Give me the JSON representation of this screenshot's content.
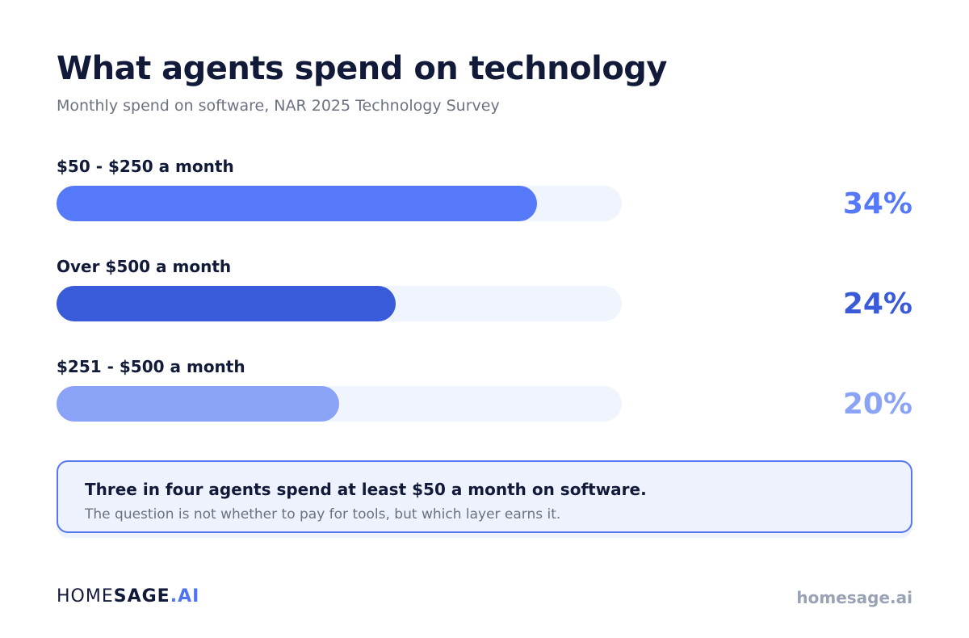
{
  "header": {
    "title": "What agents spend on technology",
    "subtitle": "Monthly spend on software, NAR 2025 Technology Survey"
  },
  "chart_data": {
    "type": "bar",
    "orientation": "horizontal",
    "categories": [
      "$50 - $250 a month",
      "Over $500 a month",
      "$251 - $500 a month"
    ],
    "values": [
      34,
      24,
      20
    ],
    "value_labels": [
      "34%",
      "24%",
      "20%"
    ],
    "xlim": [
      0,
      40
    ],
    "colors": [
      "#5579f8",
      "#3a5bd9",
      "#8aa3f7"
    ],
    "track_color": "#f0f4fd",
    "grid": false
  },
  "callout": {
    "headline": "Three in four agents spend at least $50 a month on software.",
    "subtext": "The question is not whether to pay for tools, but which layer earns it."
  },
  "footer": {
    "logo": {
      "part1": "HOME",
      "part2": "SAGE",
      "part3": ".AI"
    },
    "website": "homesage.ai"
  },
  "colors": {
    "title": "#121a3a",
    "accent": "#4f74f2",
    "callout_border": "#5578f2",
    "callout_bg": "#edf2fd",
    "muted": "#6b7280"
  }
}
